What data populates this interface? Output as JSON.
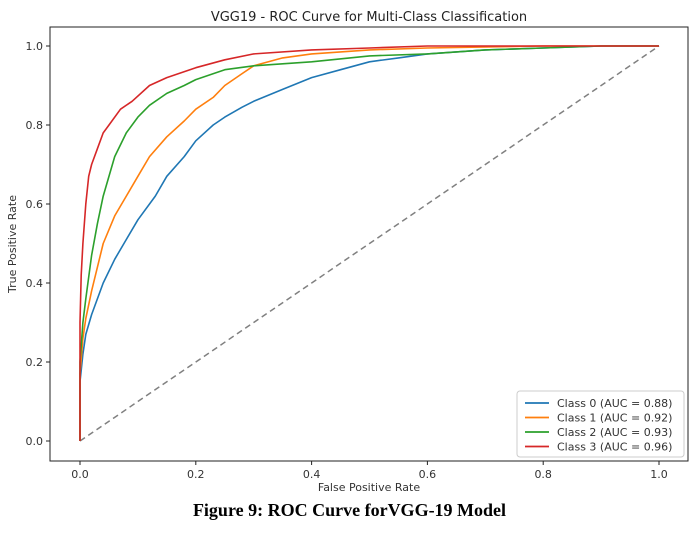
{
  "caption": "Figure 9: ROC Curve forVGG-19 Model",
  "chart_data": {
    "type": "line",
    "title": "VGG19 - ROC Curve for Multi-Class Classification",
    "xlabel": "False Positive Rate",
    "ylabel": "True Positive Rate",
    "xlim": [
      -0.05,
      1.05
    ],
    "ylim": [
      -0.05,
      1.05
    ],
    "xticks": [
      "0.0",
      "0.2",
      "0.4",
      "0.6",
      "0.8",
      "1.0"
    ],
    "yticks": [
      "0.0",
      "0.2",
      "0.4",
      "0.6",
      "0.8",
      "1.0"
    ],
    "grid": false,
    "legend_position": "lower-right",
    "diagonal": {
      "x": [
        0,
        1
      ],
      "y": [
        0,
        1
      ],
      "color": "#808080",
      "style": "dashed"
    },
    "series": [
      {
        "name": "Class 0 (AUC = 0.88)",
        "color": "#1f77b4",
        "x": [
          0,
          0.0,
          0.005,
          0.01,
          0.02,
          0.04,
          0.06,
          0.08,
          0.1,
          0.13,
          0.15,
          0.18,
          0.2,
          0.23,
          0.25,
          0.28,
          0.3,
          0.35,
          0.4,
          0.45,
          0.5,
          0.55,
          0.6,
          0.7,
          0.8,
          0.9,
          1.0
        ],
        "y": [
          0,
          0.15,
          0.22,
          0.27,
          0.32,
          0.4,
          0.46,
          0.51,
          0.56,
          0.62,
          0.67,
          0.72,
          0.76,
          0.8,
          0.82,
          0.845,
          0.86,
          0.89,
          0.92,
          0.94,
          0.96,
          0.97,
          0.98,
          0.99,
          0.995,
          1.0,
          1.0
        ]
      },
      {
        "name": "Class 1 (AUC = 0.92)",
        "color": "#ff7f0e",
        "x": [
          0,
          0.0,
          0.005,
          0.01,
          0.02,
          0.04,
          0.06,
          0.08,
          0.1,
          0.12,
          0.15,
          0.18,
          0.2,
          0.23,
          0.25,
          0.28,
          0.3,
          0.35,
          0.4,
          0.5,
          0.6,
          0.8,
          1.0
        ],
        "y": [
          0,
          0.17,
          0.26,
          0.31,
          0.38,
          0.5,
          0.57,
          0.62,
          0.67,
          0.72,
          0.77,
          0.81,
          0.84,
          0.87,
          0.9,
          0.93,
          0.95,
          0.97,
          0.98,
          0.99,
          0.995,
          1.0,
          1.0
        ]
      },
      {
        "name": "Class 2 (AUC = 0.93)",
        "color": "#2ca02c",
        "x": [
          0,
          0.0,
          0.005,
          0.01,
          0.02,
          0.03,
          0.04,
          0.06,
          0.08,
          0.1,
          0.12,
          0.15,
          0.18,
          0.2,
          0.25,
          0.3,
          0.35,
          0.4,
          0.5,
          0.6,
          0.7,
          0.8,
          0.9,
          1.0
        ],
        "y": [
          0,
          0.2,
          0.3,
          0.36,
          0.47,
          0.55,
          0.62,
          0.72,
          0.78,
          0.82,
          0.85,
          0.88,
          0.9,
          0.915,
          0.94,
          0.95,
          0.955,
          0.96,
          0.975,
          0.98,
          0.99,
          0.995,
          1.0,
          1.0
        ]
      },
      {
        "name": "Class 3 (AUC = 0.96)",
        "color": "#d62728",
        "x": [
          0,
          0.0,
          0.002,
          0.005,
          0.01,
          0.015,
          0.02,
          0.03,
          0.04,
          0.05,
          0.07,
          0.09,
          0.12,
          0.15,
          0.2,
          0.25,
          0.3,
          0.4,
          0.5,
          0.6,
          0.8,
          1.0
        ],
        "y": [
          0,
          0.3,
          0.42,
          0.5,
          0.6,
          0.67,
          0.7,
          0.74,
          0.78,
          0.8,
          0.84,
          0.86,
          0.9,
          0.92,
          0.945,
          0.965,
          0.98,
          0.99,
          0.995,
          1.0,
          1.0,
          1.0
        ]
      }
    ]
  }
}
